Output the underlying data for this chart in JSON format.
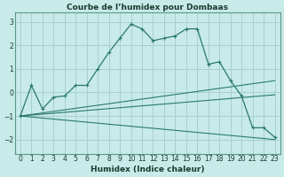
{
  "title": "Courbe de l’humidex pour Dombaas",
  "xlabel": "Humidex (Indice chaleur)",
  "background_color": "#c8eae8",
  "grid_color": "#a8d0ce",
  "line_color": "#2a7a6a",
  "xlim": [
    -0.5,
    23.5
  ],
  "ylim": [
    -2.6,
    3.4
  ],
  "yticks": [
    -2,
    -1,
    0,
    1,
    2,
    3
  ],
  "xticks": [
    0,
    1,
    2,
    3,
    4,
    5,
    6,
    7,
    8,
    9,
    10,
    11,
    12,
    13,
    14,
    15,
    16,
    17,
    18,
    19,
    20,
    21,
    22,
    23
  ],
  "series": [
    [
      0,
      -1.0
    ],
    [
      1,
      0.3
    ],
    [
      2,
      -0.7
    ],
    [
      3,
      -0.2
    ],
    [
      4,
      -0.15
    ],
    [
      5,
      0.3
    ],
    [
      6,
      0.3
    ],
    [
      7,
      1.0
    ],
    [
      8,
      1.7
    ],
    [
      9,
      2.3
    ],
    [
      10,
      2.9
    ],
    [
      11,
      2.7
    ],
    [
      12,
      2.2
    ],
    [
      13,
      2.3
    ],
    [
      14,
      2.4
    ],
    [
      15,
      2.7
    ],
    [
      16,
      2.7
    ],
    [
      17,
      1.2
    ],
    [
      18,
      1.3
    ],
    [
      19,
      0.5
    ],
    [
      20,
      -0.15
    ],
    [
      21,
      -1.5
    ],
    [
      22,
      -1.5
    ],
    [
      23,
      -1.9
    ]
  ],
  "line2": [
    [
      0,
      -1.0
    ],
    [
      23,
      0.5
    ]
  ],
  "line3": [
    [
      0,
      -1.0
    ],
    [
      23,
      -0.1
    ]
  ],
  "line4": [
    [
      0,
      -1.0
    ],
    [
      23,
      -2.0
    ]
  ]
}
